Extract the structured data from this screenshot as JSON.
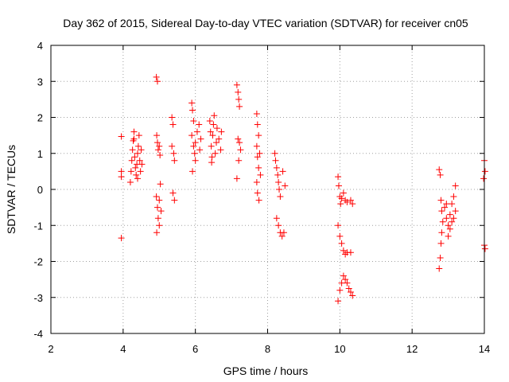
{
  "chart_data": {
    "type": "scatter",
    "title": "Day 362 of 2015, Sidereal Day-to-day VTEC variation (SDTVAR) for receiver cn05",
    "xlabel": "GPS time / hours",
    "ylabel": "SDTVAR / TECUs",
    "xlim": [
      2,
      14
    ],
    "ylim": [
      -4,
      4
    ],
    "xticks": [
      "2",
      "4",
      "6",
      "8",
      "10",
      "12",
      "14"
    ],
    "yticks": [
      "-4",
      "-3",
      "-2",
      "-1",
      "0",
      "1",
      "2",
      "3",
      "4"
    ],
    "grid": true,
    "marker": "+",
    "colors": {
      "series": "#ff0000",
      "grid": "#a0a0a0",
      "axis": "#000000"
    },
    "series": [
      {
        "name": "SDTVAR",
        "points": [
          [
            3.95,
            1.47
          ],
          [
            3.95,
            0.5
          ],
          [
            3.95,
            0.35
          ],
          [
            3.95,
            -1.35
          ],
          [
            4.2,
            0.2
          ],
          [
            4.22,
            0.5
          ],
          [
            4.24,
            0.8
          ],
          [
            4.26,
            1.1
          ],
          [
            4.28,
            1.35
          ],
          [
            4.3,
            1.4
          ],
          [
            4.32,
            0.9
          ],
          [
            4.34,
            0.6
          ],
          [
            4.36,
            0.4
          ],
          [
            4.38,
            0.7
          ],
          [
            4.4,
            1.0
          ],
          [
            4.42,
            1.2
          ],
          [
            4.44,
            1.5
          ],
          [
            4.46,
            0.8
          ],
          [
            4.48,
            0.5
          ],
          [
            4.5,
            1.1
          ],
          [
            4.52,
            0.7
          ],
          [
            4.3,
            1.6
          ],
          [
            4.4,
            0.3
          ],
          [
            4.92,
            3.12
          ],
          [
            4.95,
            3.0
          ],
          [
            4.93,
            1.5
          ],
          [
            4.95,
            1.3
          ],
          [
            4.97,
            1.1
          ],
          [
            5.0,
            1.2
          ],
          [
            5.02,
            0.95
          ],
          [
            4.92,
            -0.2
          ],
          [
            4.95,
            -0.5
          ],
          [
            4.97,
            -0.8
          ],
          [
            5.0,
            -1.0
          ],
          [
            4.93,
            -1.2
          ],
          [
            5.0,
            -0.3
          ],
          [
            5.03,
            0.15
          ],
          [
            5.05,
            -0.6
          ],
          [
            5.35,
            2.0
          ],
          [
            5.38,
            1.8
          ],
          [
            5.35,
            1.2
          ],
          [
            5.4,
            1.0
          ],
          [
            5.42,
            0.8
          ],
          [
            5.38,
            -0.1
          ],
          [
            5.42,
            -0.3
          ],
          [
            5.9,
            2.4
          ],
          [
            5.92,
            2.2
          ],
          [
            5.95,
            1.9
          ],
          [
            5.9,
            1.5
          ],
          [
            5.95,
            1.2
          ],
          [
            5.98,
            1.0
          ],
          [
            6.0,
            1.3
          ],
          [
            6.05,
            1.6
          ],
          [
            6.1,
            1.8
          ],
          [
            6.0,
            0.8
          ],
          [
            5.92,
            0.5
          ],
          [
            6.12,
            1.1
          ],
          [
            6.15,
            1.4
          ],
          [
            6.4,
            1.9
          ],
          [
            6.42,
            1.6
          ],
          [
            6.44,
            1.2
          ],
          [
            6.46,
            0.9
          ],
          [
            6.48,
            1.5
          ],
          [
            6.5,
            1.8
          ],
          [
            6.52,
            2.05
          ],
          [
            6.55,
            1.0
          ],
          [
            6.58,
            1.3
          ],
          [
            6.6,
            1.7
          ],
          [
            6.65,
            1.4
          ],
          [
            6.7,
            1.1
          ],
          [
            6.72,
            1.6
          ],
          [
            6.45,
            0.75
          ],
          [
            7.15,
            2.9
          ],
          [
            7.18,
            2.7
          ],
          [
            7.2,
            2.5
          ],
          [
            7.22,
            2.3
          ],
          [
            7.18,
            1.4
          ],
          [
            7.22,
            1.3
          ],
          [
            7.2,
            0.8
          ],
          [
            7.15,
            0.3
          ],
          [
            7.25,
            1.1
          ],
          [
            7.7,
            2.1
          ],
          [
            7.72,
            1.8
          ],
          [
            7.75,
            1.5
          ],
          [
            7.7,
            1.2
          ],
          [
            7.72,
            0.9
          ],
          [
            7.75,
            0.6
          ],
          [
            7.7,
            0.2
          ],
          [
            7.72,
            -0.1
          ],
          [
            7.76,
            -0.3
          ],
          [
            7.8,
            0.4
          ],
          [
            7.78,
            1.0
          ],
          [
            8.2,
            1.0
          ],
          [
            8.22,
            0.8
          ],
          [
            8.25,
            0.6
          ],
          [
            8.28,
            0.4
          ],
          [
            8.3,
            0.2
          ],
          [
            8.32,
            0.0
          ],
          [
            8.35,
            -0.2
          ],
          [
            8.25,
            -0.8
          ],
          [
            8.3,
            -1.0
          ],
          [
            8.35,
            -1.2
          ],
          [
            8.4,
            -1.3
          ],
          [
            8.45,
            -1.2
          ],
          [
            8.42,
            0.5
          ],
          [
            8.48,
            0.1
          ],
          [
            9.95,
            0.35
          ],
          [
            9.97,
            0.1
          ],
          [
            10.0,
            -0.2
          ],
          [
            10.02,
            -0.4
          ],
          [
            10.05,
            -0.25
          ],
          [
            10.1,
            -0.1
          ],
          [
            10.15,
            -0.3
          ],
          [
            10.2,
            -0.35
          ],
          [
            10.3,
            -0.3
          ],
          [
            10.35,
            -0.4
          ],
          [
            9.95,
            -1.0
          ],
          [
            10.0,
            -1.3
          ],
          [
            10.05,
            -1.5
          ],
          [
            10.1,
            -1.7
          ],
          [
            10.15,
            -1.8
          ],
          [
            10.2,
            -1.75
          ],
          [
            10.3,
            -1.75
          ],
          [
            9.95,
            -3.1
          ],
          [
            10.0,
            -2.8
          ],
          [
            10.05,
            -2.6
          ],
          [
            10.1,
            -2.4
          ],
          [
            10.15,
            -2.5
          ],
          [
            10.2,
            -2.6
          ],
          [
            10.25,
            -2.75
          ],
          [
            10.3,
            -2.85
          ],
          [
            10.35,
            -2.95
          ],
          [
            12.75,
            0.55
          ],
          [
            12.78,
            0.4
          ],
          [
            12.8,
            -0.3
          ],
          [
            12.82,
            -0.6
          ],
          [
            12.75,
            -2.2
          ],
          [
            12.78,
            -1.9
          ],
          [
            12.8,
            -1.5
          ],
          [
            12.82,
            -1.2
          ],
          [
            12.85,
            -0.9
          ],
          [
            12.9,
            -0.5
          ],
          [
            12.95,
            -0.8
          ],
          [
            13.0,
            -1.0
          ],
          [
            13.05,
            -0.7
          ],
          [
            13.1,
            -0.4
          ],
          [
            13.15,
            -0.2
          ],
          [
            13.2,
            0.1
          ],
          [
            13.0,
            -1.3
          ],
          [
            13.05,
            -1.1
          ],
          [
            13.1,
            -0.9
          ],
          [
            13.15,
            -0.8
          ],
          [
            13.2,
            -0.6
          ],
          [
            12.95,
            -0.4
          ],
          [
            14.0,
            0.8
          ],
          [
            14.02,
            0.5
          ],
          [
            13.98,
            0.3
          ],
          [
            14.0,
            -1.55
          ],
          [
            14.02,
            -1.65
          ]
        ]
      }
    ]
  }
}
